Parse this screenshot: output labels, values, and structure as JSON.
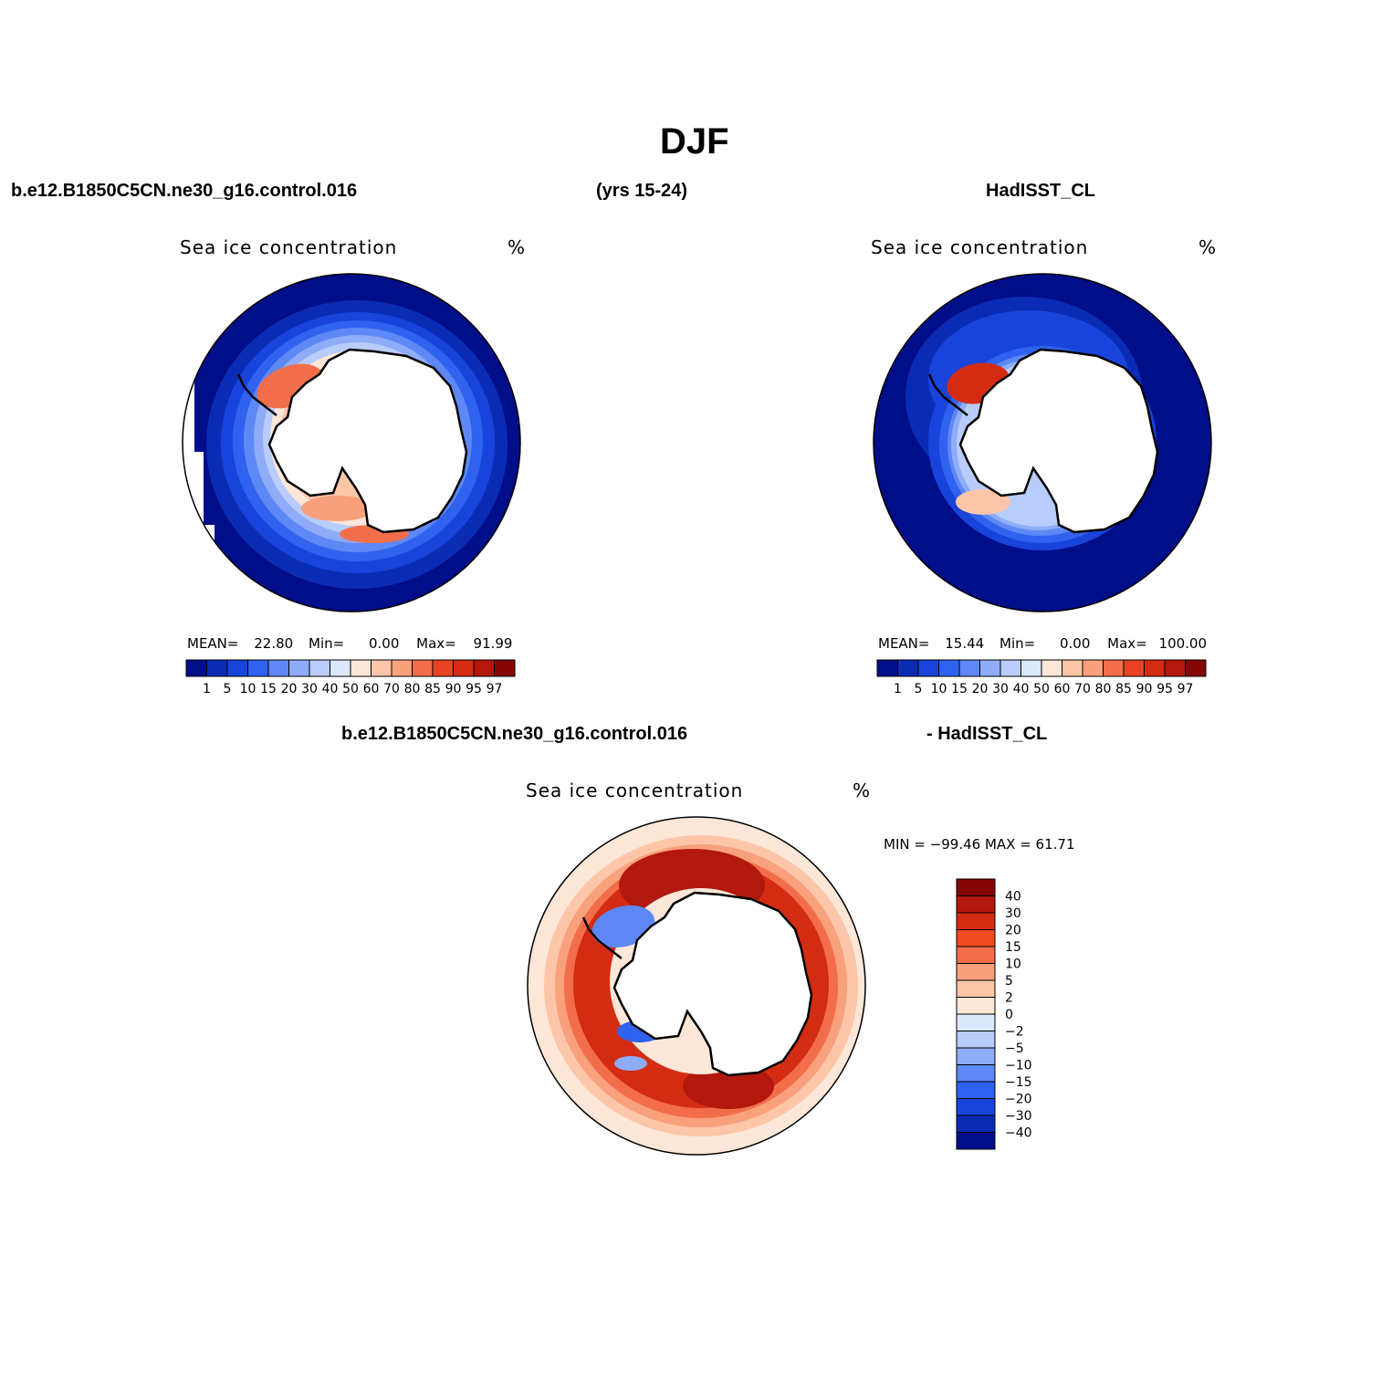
{
  "title": "DJF",
  "top_headers": {
    "left": "b.e12.B1850C5CN.ne30_g16.control.016",
    "middle": "(yrs 15-24)",
    "right": "HadISST_CL"
  },
  "bottom_headers": {
    "left": "b.e12.B1850C5CN.ne30_g16.control.016",
    "right": "- HadISST_CL"
  },
  "panels": {
    "model": {
      "title": "Sea ice concentration",
      "units": "%",
      "stats": {
        "mean_label": "MEAN=",
        "mean": "22.80",
        "min_label": "Min=",
        "min": "0.00",
        "max_label": "Max=",
        "max": "91.99"
      }
    },
    "obs": {
      "title": "Sea ice concentration",
      "units": "%",
      "stats": {
        "mean_label": "MEAN=",
        "mean": "15.44",
        "min_label": "Min=",
        "min": "0.00",
        "max_label": "Max=",
        "max": "100.00"
      }
    },
    "diff": {
      "title": "Sea ice concentration",
      "units": "%",
      "minmax": "MIN = −99.46  MAX =   61.71"
    }
  },
  "colorbar_conc": {
    "labels": [
      "1",
      "5",
      "10",
      "15",
      "20",
      "30",
      "40",
      "50",
      "60",
      "70",
      "80",
      "85",
      "90",
      "95",
      "97"
    ],
    "colors": [
      "#000e8a",
      "#0a2cb4",
      "#1844dc",
      "#2f62ee",
      "#5e88f6",
      "#8eacf8",
      "#b8cdfb",
      "#dce8fc",
      "#fde7d8",
      "#fdc6a8",
      "#f9a07c",
      "#f26e4a",
      "#e84424",
      "#d42c12",
      "#b2180c",
      "#860606"
    ]
  },
  "colorbar_diff": {
    "labels": [
      "40",
      "30",
      "20",
      "15",
      "10",
      "5",
      "2",
      "0",
      "−2",
      "−5",
      "−10",
      "−15",
      "−20",
      "−30",
      "−40"
    ],
    "colors": [
      "#860606",
      "#b2180c",
      "#d42c12",
      "#f04a20",
      "#f26e4a",
      "#f9a07c",
      "#fdc6a8",
      "#fde7d8",
      "#dce8fc",
      "#b8cdfb",
      "#8eacf8",
      "#5e88f6",
      "#2f62ee",
      "#1844dc",
      "#0a2cb4",
      "#000e8a"
    ]
  },
  "map_colors": {
    "land": "#ffffff",
    "coast": "#000000",
    "deep_blue": "#000e8a",
    "light_peach": "#fde7d8"
  }
}
